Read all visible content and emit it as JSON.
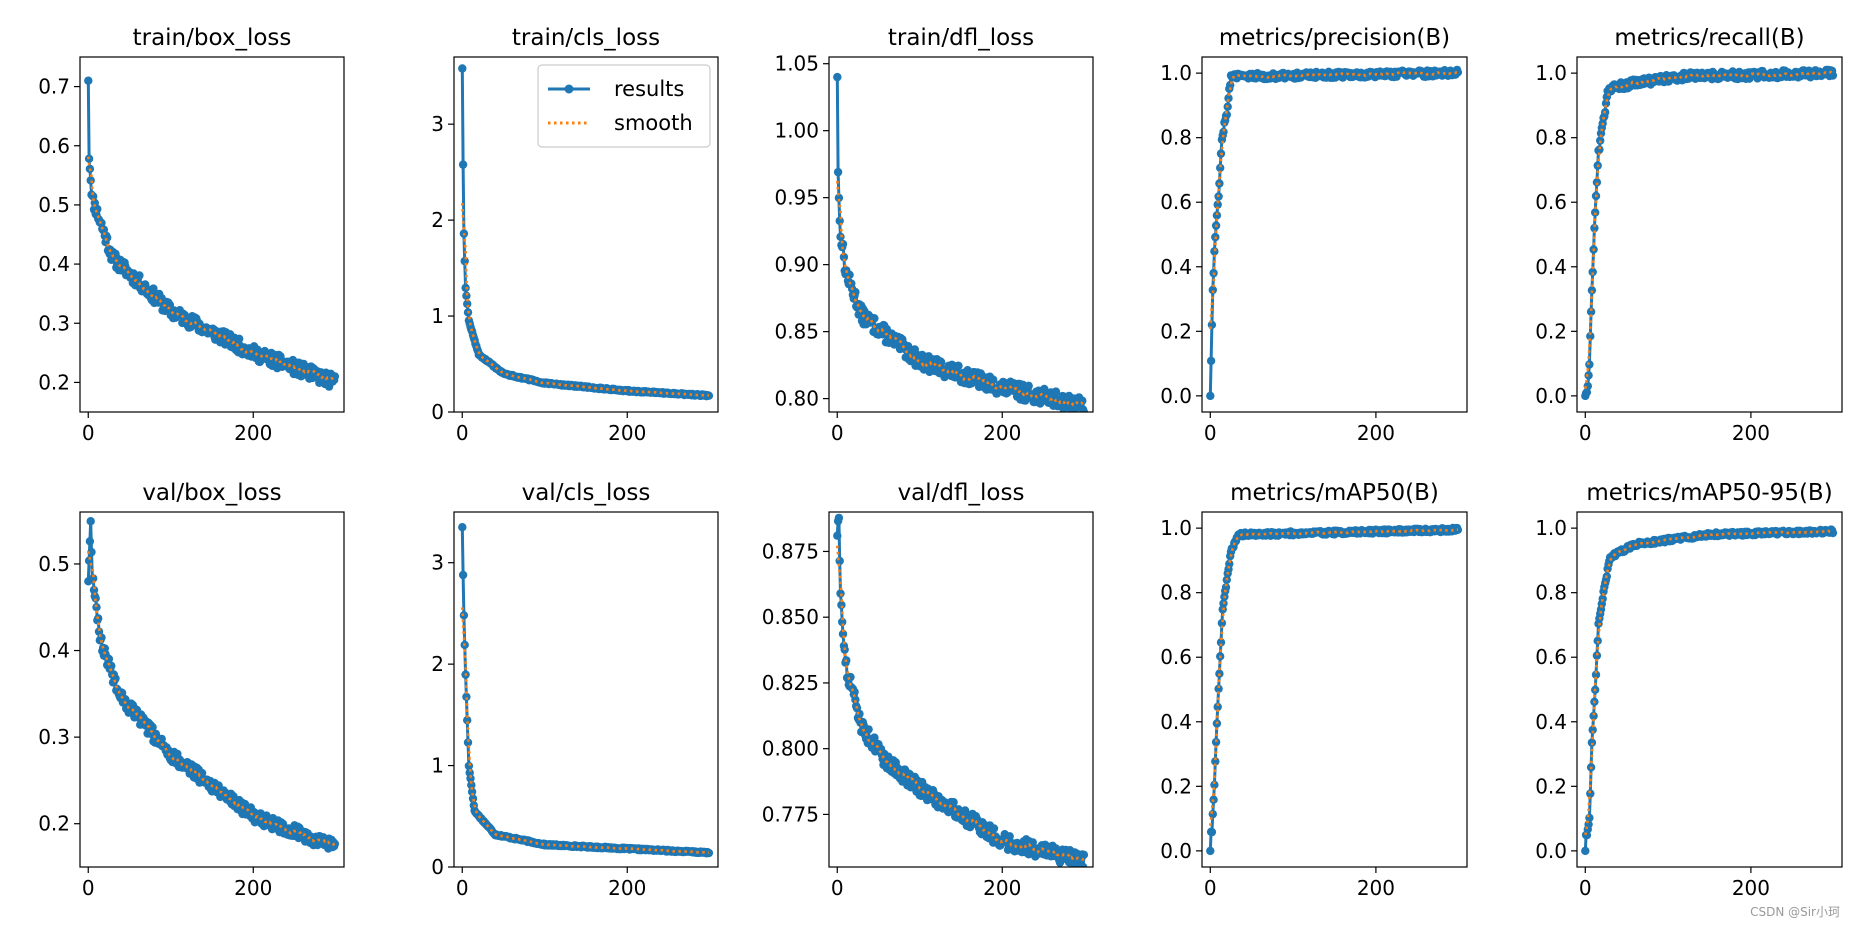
{
  "figure_watermark": "CSDN @Sir小珂",
  "colors": {
    "results": "#1f77b4",
    "smooth": "#ff7f0e",
    "axis": "#000000"
  },
  "legend": {
    "results_label": "results",
    "smooth_label": "smooth",
    "placement": "top-right"
  },
  "chart_data": [
    {
      "type": "line",
      "title": "train/box_loss",
      "xlim": [
        -10,
        310
      ],
      "ylim": [
        0.15,
        0.75
      ],
      "xticks": [
        0,
        200
      ],
      "xtick_labels": [
        "0",
        "200"
      ],
      "yticks": [
        0.2,
        0.3,
        0.4,
        0.5,
        0.6,
        0.7
      ],
      "ytick_labels": [
        "0.2",
        "0.3",
        "0.4",
        "0.5",
        "0.6",
        "0.7"
      ],
      "curve": {
        "start": 0.71,
        "anchors": [
          [
            1,
            0.58
          ],
          [
            5,
            0.51
          ],
          [
            30,
            0.41
          ],
          [
            100,
            0.32
          ],
          [
            200,
            0.25
          ],
          [
            300,
            0.2
          ]
        ],
        "noise": 0.012,
        "seed": 11
      }
    },
    {
      "type": "line",
      "title": "train/cls_loss",
      "legend": true,
      "xlim": [
        -10,
        310
      ],
      "ylim": [
        0,
        3.7
      ],
      "xticks": [
        0,
        200
      ],
      "xtick_labels": [
        "0",
        "200"
      ],
      "yticks": [
        0,
        1,
        2,
        3
      ],
      "ytick_labels": [
        "0",
        "1",
        "2",
        "3"
      ],
      "curve": {
        "start": 3.58,
        "anchors": [
          [
            1,
            2.58
          ],
          [
            2,
            1.86
          ],
          [
            4,
            1.3
          ],
          [
            8,
            0.95
          ],
          [
            20,
            0.6
          ],
          [
            50,
            0.4
          ],
          [
            100,
            0.3
          ],
          [
            200,
            0.22
          ],
          [
            300,
            0.17
          ]
        ],
        "noise": 0.008,
        "seed": 12
      }
    },
    {
      "type": "line",
      "title": "train/dfl_loss",
      "xlim": [
        -10,
        310
      ],
      "ylim": [
        0.79,
        1.055
      ],
      "xticks": [
        0,
        200
      ],
      "xtick_labels": [
        "0",
        "200"
      ],
      "yticks": [
        0.8,
        0.85,
        0.9,
        0.95,
        1.0,
        1.05
      ],
      "ytick_labels": [
        "0.80",
        "0.85",
        "0.90",
        "0.95",
        "1.00",
        "1.05"
      ],
      "curve": {
        "start": 1.04,
        "anchors": [
          [
            1,
            0.97
          ],
          [
            3,
            0.93
          ],
          [
            10,
            0.895
          ],
          [
            30,
            0.862
          ],
          [
            100,
            0.828
          ],
          [
            200,
            0.808
          ],
          [
            300,
            0.795
          ]
        ],
        "noise": 0.006,
        "seed": 13
      }
    },
    {
      "type": "line",
      "title": "metrics/precision(B)",
      "xlim": [
        -10,
        310
      ],
      "ylim": [
        -0.05,
        1.05
      ],
      "xticks": [
        0,
        200
      ],
      "xtick_labels": [
        "0",
        "200"
      ],
      "yticks": [
        0,
        0.2,
        0.4,
        0.6,
        0.8,
        1.0
      ],
      "ytick_labels": [
        "0.0",
        "0.2",
        "0.4",
        "0.6",
        "0.8",
        "1.0"
      ],
      "curve": {
        "start": 0.0,
        "anchors": [
          [
            1,
            0.11
          ],
          [
            3,
            0.33
          ],
          [
            6,
            0.5
          ],
          [
            10,
            0.62
          ],
          [
            14,
            0.8
          ],
          [
            20,
            0.88
          ],
          [
            25,
            0.99
          ],
          [
            300,
            1.0
          ]
        ],
        "noise": 0.01,
        "seed": 14
      }
    },
    {
      "type": "line",
      "title": "metrics/recall(B)",
      "xlim": [
        -10,
        310
      ],
      "ylim": [
        -0.05,
        1.05
      ],
      "xticks": [
        0,
        200
      ],
      "xtick_labels": [
        "0",
        "200"
      ],
      "yticks": [
        0,
        0.2,
        0.4,
        0.6,
        0.8,
        1.0
      ],
      "ytick_labels": [
        "0.0",
        "0.2",
        "0.4",
        "0.6",
        "0.8",
        "1.0"
      ],
      "curve": {
        "start": 0.0,
        "anchors": [
          [
            2,
            0.01
          ],
          [
            5,
            0.1
          ],
          [
            8,
            0.33
          ],
          [
            12,
            0.58
          ],
          [
            16,
            0.76
          ],
          [
            22,
            0.85
          ],
          [
            28,
            0.95
          ],
          [
            60,
            0.97
          ],
          [
            120,
            0.99
          ],
          [
            300,
            1.0
          ]
        ],
        "noise": 0.012,
        "seed": 15
      }
    },
    {
      "type": "line",
      "title": "val/box_loss",
      "xlim": [
        -10,
        310
      ],
      "ylim": [
        0.15,
        0.56
      ],
      "xticks": [
        0,
        200
      ],
      "xtick_labels": [
        "0",
        "200"
      ],
      "yticks": [
        0.2,
        0.3,
        0.4,
        0.5
      ],
      "ytick_labels": [
        "0.2",
        "0.3",
        "0.4",
        "0.5"
      ],
      "curve": {
        "start": 0.48,
        "anchors": [
          [
            1,
            0.505
          ],
          [
            3,
            0.545
          ],
          [
            5,
            0.49
          ],
          [
            15,
            0.41
          ],
          [
            40,
            0.345
          ],
          [
            100,
            0.28
          ],
          [
            200,
            0.21
          ],
          [
            300,
            0.172
          ]
        ],
        "noise": 0.008,
        "seed": 16
      }
    },
    {
      "type": "line",
      "title": "val/cls_loss",
      "xlim": [
        -10,
        310
      ],
      "ylim": [
        0,
        3.5
      ],
      "xticks": [
        0,
        200
      ],
      "xtick_labels": [
        "0",
        "200"
      ],
      "yticks": [
        0,
        1,
        2,
        3
      ],
      "ytick_labels": [
        "0",
        "1",
        "2",
        "3"
      ],
      "curve": {
        "start": 3.35,
        "anchors": [
          [
            1,
            2.88
          ],
          [
            2,
            2.48
          ],
          [
            4,
            1.9
          ],
          [
            8,
            1.0
          ],
          [
            15,
            0.55
          ],
          [
            40,
            0.32
          ],
          [
            100,
            0.22
          ],
          [
            200,
            0.18
          ],
          [
            300,
            0.14
          ]
        ],
        "noise": 0.008,
        "seed": 17
      }
    },
    {
      "type": "line",
      "title": "val/dfl_loss",
      "xlim": [
        -10,
        310
      ],
      "ylim": [
        0.755,
        0.89
      ],
      "xticks": [
        0,
        200
      ],
      "xtick_labels": [
        "0",
        "200"
      ],
      "yticks": [
        0.775,
        0.8,
        0.825,
        0.85,
        0.875
      ],
      "ytick_labels": [
        "0.775",
        "0.800",
        "0.825",
        "0.850",
        "0.875"
      ],
      "curve": {
        "start": 0.881,
        "anchors": [
          [
            2,
            0.887
          ],
          [
            4,
            0.86
          ],
          [
            10,
            0.832
          ],
          [
            30,
            0.808
          ],
          [
            60,
            0.795
          ],
          [
            100,
            0.785
          ],
          [
            200,
            0.765
          ],
          [
            300,
            0.757
          ]
        ],
        "noise": 0.003,
        "seed": 18
      }
    },
    {
      "type": "line",
      "title": "metrics/mAP50(B)",
      "xlim": [
        -10,
        310
      ],
      "ylim": [
        -0.05,
        1.05
      ],
      "xticks": [
        0,
        200
      ],
      "xtick_labels": [
        "0",
        "200"
      ],
      "yticks": [
        0,
        0.2,
        0.4,
        0.6,
        0.8,
        1.0
      ],
      "ytick_labels": [
        "0.0",
        "0.2",
        "0.4",
        "0.6",
        "0.8",
        "1.0"
      ],
      "curve": {
        "start": 0.0,
        "anchors": [
          [
            2,
            0.06
          ],
          [
            5,
            0.21
          ],
          [
            8,
            0.4
          ],
          [
            11,
            0.55
          ],
          [
            15,
            0.75
          ],
          [
            20,
            0.84
          ],
          [
            25,
            0.93
          ],
          [
            35,
            0.98
          ],
          [
            300,
            0.995
          ]
        ],
        "noise": 0.006,
        "seed": 19
      }
    },
    {
      "type": "line",
      "title": "metrics/mAP50-95(B)",
      "xlim": [
        -10,
        310
      ],
      "ylim": [
        -0.05,
        1.05
      ],
      "xticks": [
        0,
        200
      ],
      "xtick_labels": [
        "0",
        "200"
      ],
      "yticks": [
        0,
        0.2,
        0.4,
        0.6,
        0.8,
        1.0
      ],
      "ytick_labels": [
        "0.0",
        "0.2",
        "0.4",
        "0.6",
        "0.8",
        "1.0"
      ],
      "curve": {
        "start": 0.0,
        "anchors": [
          [
            2,
            0.05
          ],
          [
            5,
            0.1
          ],
          [
            8,
            0.33
          ],
          [
            12,
            0.5
          ],
          [
            16,
            0.7
          ],
          [
            22,
            0.8
          ],
          [
            30,
            0.91
          ],
          [
            60,
            0.95
          ],
          [
            150,
            0.98
          ],
          [
            300,
            0.99
          ]
        ],
        "noise": 0.006,
        "seed": 20
      }
    }
  ]
}
